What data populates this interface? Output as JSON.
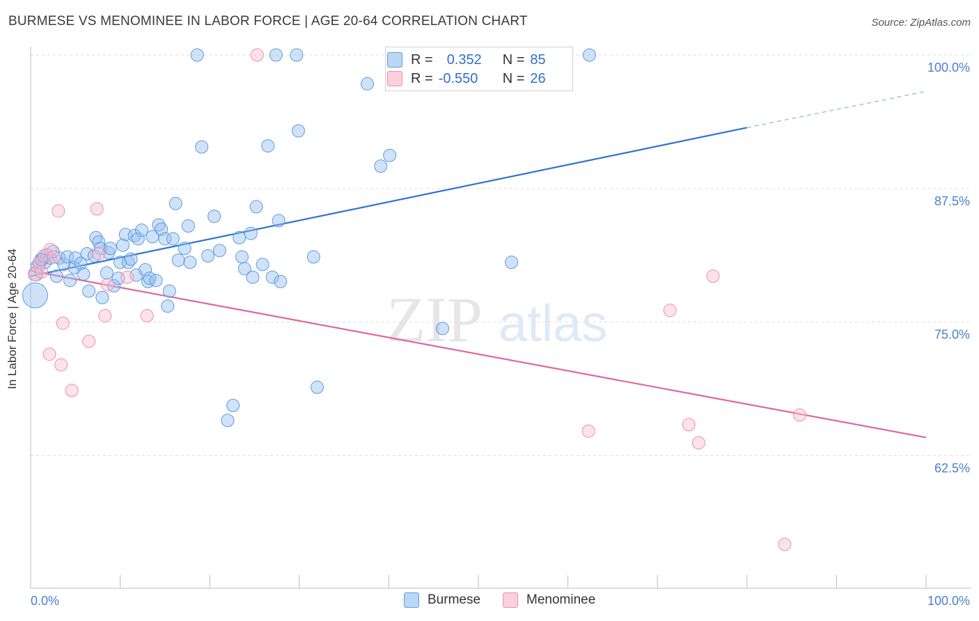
{
  "title": "BURMESE VS MENOMINEE IN LABOR FORCE | AGE 20-64 CORRELATION CHART",
  "source": "Source: ZipAtlas.com",
  "watermark": {
    "zip": "ZIP",
    "atlas": "atlas"
  },
  "legend": {
    "rows": [
      {
        "r_label": "R =",
        "r_value": "0.352",
        "n_label": "N =",
        "n_value": "85",
        "color": "#5b9bde"
      },
      {
        "r_label": "R =",
        "r_value": "-0.550",
        "n_label": "N =",
        "n_value": "26",
        "color": "#f08cab"
      }
    ]
  },
  "bottom_legend": [
    {
      "name": "Burmese",
      "color": "#5b9bde"
    },
    {
      "name": "Menominee",
      "color": "#f08cab"
    }
  ],
  "chart_data": {
    "type": "scatter",
    "title": "BURMESE VS MENOMINEE IN LABOR FORCE | AGE 20-64 CORRELATION CHART",
    "xlabel": "",
    "ylabel": "In Labor Force | Age 20-64",
    "xlim": [
      0,
      100
    ],
    "ylim": [
      51,
      102
    ],
    "x_tick_labels": [
      "0.0%",
      "100.0%"
    ],
    "y_ticks": [
      62.5,
      75.0,
      87.5,
      100.0
    ],
    "y_tick_labels": [
      "62.5%",
      "75.0%",
      "87.5%",
      "100.0%"
    ],
    "grid": "horizontal dashed",
    "legend_position": "top-center",
    "series": [
      {
        "name": "Burmese",
        "color": "#5b9bde",
        "trend": {
          "x0": 0,
          "y0": 79.3,
          "x1": 80,
          "y1": 93.2,
          "dashed_to_x": 100,
          "dashed_to_y": 96.6
        },
        "points": [
          [
            0.5,
            77.5,
            18
          ],
          [
            0.6,
            79.5,
            10
          ],
          [
            0.8,
            80.2,
            10
          ],
          [
            1.0,
            80.6,
            9
          ],
          [
            1.2,
            80.9,
            9
          ],
          [
            1.6,
            80.6,
            9
          ],
          [
            1.8,
            81.3,
            9
          ],
          [
            2.2,
            81.0,
            9
          ],
          [
            2.9,
            79.3,
            9
          ],
          [
            3.2,
            81.0,
            9
          ],
          [
            3.7,
            80.4,
            9
          ],
          [
            4.1,
            81.1,
            9
          ],
          [
            4.4,
            78.9,
            9
          ],
          [
            4.9,
            80.1,
            9
          ],
          [
            5.0,
            81.0,
            9
          ],
          [
            5.6,
            80.5,
            9
          ],
          [
            5.9,
            79.5,
            9
          ],
          [
            6.3,
            81.4,
            9
          ],
          [
            6.5,
            77.9,
            9
          ],
          [
            7.1,
            81.2,
            9
          ],
          [
            7.3,
            82.9,
            9
          ],
          [
            7.6,
            82.5,
            9
          ],
          [
            7.8,
            81.9,
            9
          ],
          [
            8.0,
            77.3,
            9
          ],
          [
            8.5,
            79.6,
            9
          ],
          [
            8.7,
            81.5,
            9
          ],
          [
            8.9,
            81.9,
            9
          ],
          [
            9.3,
            78.4,
            9
          ],
          [
            9.8,
            79.1,
            9
          ],
          [
            10.0,
            80.6,
            9
          ],
          [
            10.3,
            82.2,
            9
          ],
          [
            10.6,
            83.2,
            9
          ],
          [
            10.9,
            80.6,
            9
          ],
          [
            11.2,
            80.9,
            9
          ],
          [
            11.6,
            83.1,
            9
          ],
          [
            11.8,
            79.4,
            9
          ],
          [
            12.0,
            82.8,
            9
          ],
          [
            12.4,
            83.6,
            9
          ],
          [
            12.8,
            79.9,
            9
          ],
          [
            13.1,
            78.8,
            9
          ],
          [
            13.3,
            79.1,
            9
          ],
          [
            13.6,
            83.0,
            9
          ],
          [
            14.0,
            78.9,
            9
          ],
          [
            14.3,
            84.1,
            9
          ],
          [
            14.6,
            83.7,
            9
          ],
          [
            15.0,
            82.8,
            9
          ],
          [
            15.3,
            76.5,
            9
          ],
          [
            15.5,
            77.9,
            9
          ],
          [
            15.9,
            82.8,
            9
          ],
          [
            16.2,
            86.1,
            9
          ],
          [
            16.5,
            80.8,
            9
          ],
          [
            17.2,
            81.9,
            9
          ],
          [
            17.6,
            84.0,
            9
          ],
          [
            17.8,
            80.6,
            9
          ],
          [
            18.6,
            100.0,
            9
          ],
          [
            19.1,
            91.4,
            9
          ],
          [
            19.8,
            81.2,
            9
          ],
          [
            20.5,
            84.9,
            9
          ],
          [
            21.1,
            81.7,
            9
          ],
          [
            22.0,
            65.8,
            9
          ],
          [
            22.6,
            67.2,
            9
          ],
          [
            23.3,
            82.9,
            9
          ],
          [
            23.6,
            81.1,
            9
          ],
          [
            23.9,
            80.0,
            9
          ],
          [
            24.8,
            79.2,
            9
          ],
          [
            24.6,
            83.3,
            9
          ],
          [
            25.2,
            85.8,
            9
          ],
          [
            25.9,
            80.4,
            9
          ],
          [
            26.5,
            91.5,
            9
          ],
          [
            27.0,
            79.2,
            9
          ],
          [
            27.4,
            100.0,
            9
          ],
          [
            27.7,
            84.5,
            9
          ],
          [
            27.9,
            78.8,
            9
          ],
          [
            29.7,
            100.0,
            9
          ],
          [
            29.9,
            92.9,
            9
          ],
          [
            31.6,
            81.1,
            9
          ],
          [
            32.0,
            68.9,
            9
          ],
          [
            37.6,
            97.3,
            9
          ],
          [
            39.1,
            89.6,
            9
          ],
          [
            40.1,
            90.6,
            9
          ],
          [
            46.0,
            74.4,
            9
          ],
          [
            53.7,
            80.6,
            9
          ],
          [
            62.4,
            100.0,
            9
          ],
          [
            1.2,
            80.8,
            9
          ],
          [
            2.5,
            81.6,
            9
          ]
        ]
      },
      {
        "name": "Menominee",
        "color": "#f08cab",
        "trend": {
          "x0": 0,
          "y0": 79.8,
          "x1": 100,
          "y1": 64.2
        },
        "points": [
          [
            0.5,
            79.5,
            10
          ],
          [
            0.9,
            80.5,
            9
          ],
          [
            1.5,
            81.2,
            9
          ],
          [
            2.2,
            81.8,
            9
          ],
          [
            3.1,
            85.4,
            9
          ],
          [
            2.1,
            72.0,
            9
          ],
          [
            3.4,
            71.0,
            9
          ],
          [
            3.6,
            74.9,
            9
          ],
          [
            4.6,
            68.6,
            9
          ],
          [
            6.5,
            73.2,
            9
          ],
          [
            7.4,
            85.6,
            9
          ],
          [
            7.6,
            81.4,
            9
          ],
          [
            8.3,
            75.6,
            9
          ],
          [
            8.6,
            78.5,
            9
          ],
          [
            10.8,
            79.2,
            9
          ],
          [
            13.0,
            75.6,
            9
          ],
          [
            25.3,
            100.0,
            9
          ],
          [
            62.3,
            64.8,
            9
          ],
          [
            71.4,
            76.1,
            9
          ],
          [
            73.5,
            65.4,
            9
          ],
          [
            74.6,
            63.7,
            9
          ],
          [
            76.2,
            79.3,
            9
          ],
          [
            84.2,
            54.2,
            9
          ],
          [
            85.9,
            66.3,
            9
          ],
          [
            1.2,
            79.7,
            9
          ],
          [
            2.6,
            81.1,
            9
          ]
        ]
      }
    ]
  }
}
